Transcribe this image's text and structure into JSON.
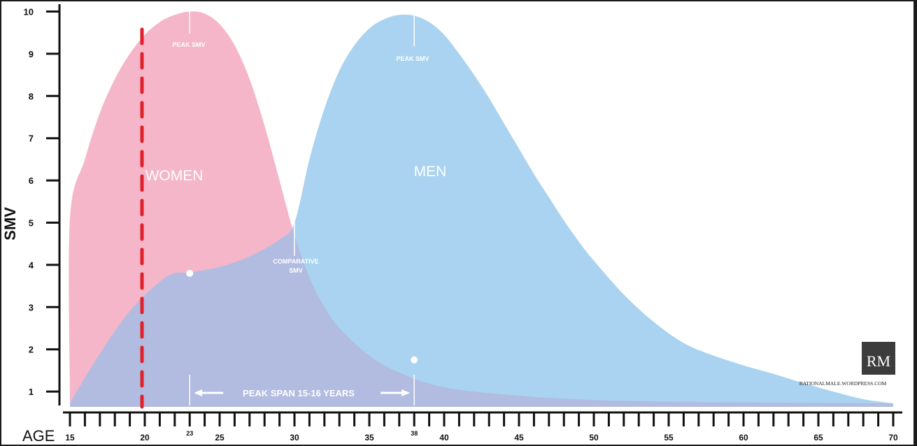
{
  "chart_data": {
    "type": "area",
    "title": "",
    "xlabel": "AGE",
    "ylabel": "SMV",
    "xlim": [
      15,
      70
    ],
    "ylim": [
      0.3,
      10
    ],
    "x_ticks": [
      15,
      20,
      25,
      30,
      35,
      40,
      45,
      50,
      55,
      60,
      65,
      70
    ],
    "x_minor_labels": [
      23,
      38
    ],
    "y_ticks": [
      1,
      2,
      3,
      4,
      5,
      6,
      7,
      8,
      9,
      10
    ],
    "grid": false,
    "legend": "none",
    "series": [
      {
        "name": "WOMEN",
        "color": "#f4b6c8",
        "points": [
          [
            15,
            0.8
          ],
          [
            15,
            5.1
          ],
          [
            16,
            6.5
          ],
          [
            17,
            7.6
          ],
          [
            18,
            8.4
          ],
          [
            19,
            9.0
          ],
          [
            20,
            9.45
          ],
          [
            21,
            9.75
          ],
          [
            22,
            9.92
          ],
          [
            23,
            10.0
          ],
          [
            24,
            9.95
          ],
          [
            25,
            9.7
          ],
          [
            26,
            9.2
          ],
          [
            27,
            8.4
          ],
          [
            28,
            7.3
          ],
          [
            29,
            6.0
          ],
          [
            30,
            4.7
          ],
          [
            31,
            3.7
          ],
          [
            32,
            3.0
          ],
          [
            33,
            2.5
          ],
          [
            35,
            1.85
          ],
          [
            37,
            1.45
          ],
          [
            40,
            1.1
          ],
          [
            45,
            0.9
          ],
          [
            50,
            0.8
          ],
          [
            55,
            0.76
          ],
          [
            60,
            0.74
          ],
          [
            65,
            0.73
          ],
          [
            70,
            0.72
          ]
        ]
      },
      {
        "name": "MEN",
        "color": "#a9d3f0",
        "points": [
          [
            15,
            0.72
          ],
          [
            17,
            1.9
          ],
          [
            19,
            2.9
          ],
          [
            21,
            3.6
          ],
          [
            22,
            3.8
          ],
          [
            23,
            3.82
          ],
          [
            25,
            3.95
          ],
          [
            27,
            4.2
          ],
          [
            29,
            4.6
          ],
          [
            30,
            5.0
          ],
          [
            31,
            6.5
          ],
          [
            32,
            7.7
          ],
          [
            33,
            8.6
          ],
          [
            34,
            9.2
          ],
          [
            35,
            9.6
          ],
          [
            36,
            9.82
          ],
          [
            37,
            9.92
          ],
          [
            38,
            9.9
          ],
          [
            39,
            9.75
          ],
          [
            40,
            9.45
          ],
          [
            41,
            9.0
          ],
          [
            42,
            8.5
          ],
          [
            43,
            7.95
          ],
          [
            44,
            7.35
          ],
          [
            45,
            6.75
          ],
          [
            46,
            6.15
          ],
          [
            47,
            5.6
          ],
          [
            48,
            5.05
          ],
          [
            49,
            4.55
          ],
          [
            50,
            4.1
          ],
          [
            52,
            3.3
          ],
          [
            54,
            2.65
          ],
          [
            56,
            2.15
          ],
          [
            58,
            1.85
          ],
          [
            60,
            1.62
          ],
          [
            62,
            1.42
          ],
          [
            64,
            1.2
          ],
          [
            66,
            1.0
          ],
          [
            68,
            0.82
          ],
          [
            70,
            0.72
          ]
        ]
      }
    ],
    "annotations": {
      "women_label": "WOMEN",
      "men_label": "MEN",
      "peak_women": "PEAK SMV",
      "peak_men": "PEAK SMV",
      "comparative_line1": "COMPARATIVE",
      "comparative_line2": "SMV",
      "peak_span": "PEAK SPAN 15-16 YEARS",
      "women_peak_age": 23,
      "men_peak_age": 38,
      "comparative_age": 30,
      "marker_women": [
        23,
        3.8
      ],
      "marker_men": [
        38,
        1.75
      ],
      "red_dashed_age": 20
    },
    "watermark": {
      "logo": "RM",
      "site": "RATIONALMALE.WORDPRESS.COM"
    },
    "colors": {
      "women": "#f4b6c8",
      "men": "#a9d3f0",
      "overlap": "#b2bbe0",
      "red_line": "#e0202a"
    }
  }
}
